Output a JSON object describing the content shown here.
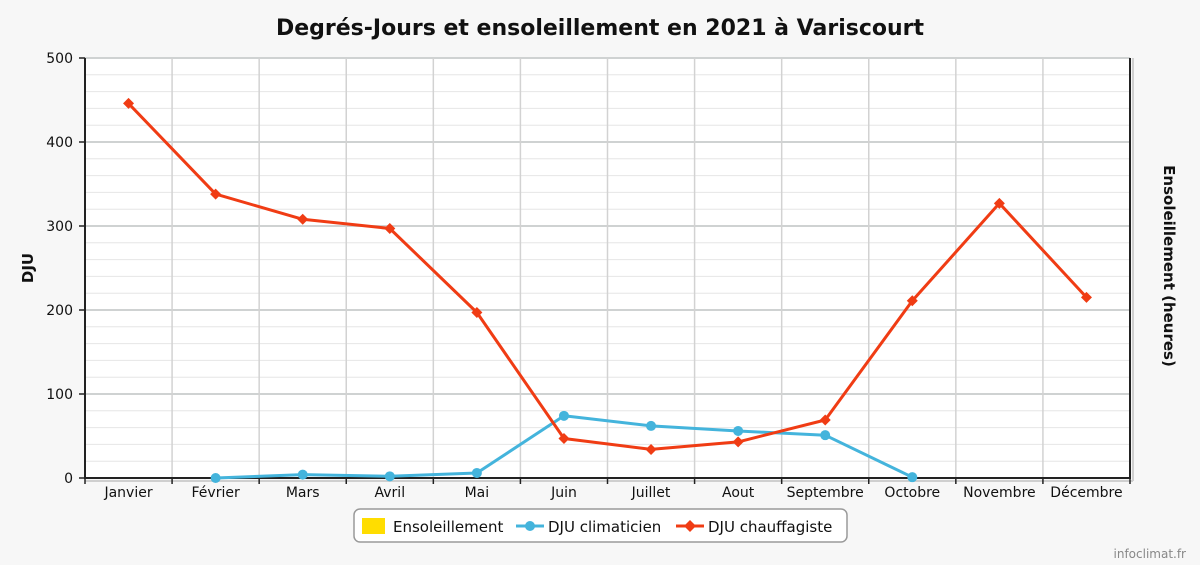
{
  "chart_data": {
    "type": "line",
    "title": "Degrés-Jours et ensoleillement en 2021 à Variscourt",
    "ylabel": "DJU",
    "y2label": "Ensoleillement (heures)",
    "ylim": [
      0,
      500
    ],
    "yticks": [
      0,
      100,
      200,
      300,
      400,
      500
    ],
    "categories": [
      "Janvier",
      "Février",
      "Mars",
      "Avril",
      "Mai",
      "Juin",
      "Juillet",
      "Aout",
      "Septembre",
      "Octobre",
      "Novembre",
      "Décembre"
    ],
    "grid": true,
    "legend_position": "bottom-center",
    "series": [
      {
        "name": "Ensoleillement",
        "kind": "bar",
        "color": "#ffdd00",
        "values": [
          null,
          null,
          null,
          null,
          null,
          null,
          null,
          null,
          null,
          null,
          null,
          null
        ]
      },
      {
        "name": "DJU climaticien",
        "kind": "line",
        "marker": "circle",
        "color": "#44b4dc",
        "values": [
          null,
          0,
          4,
          2,
          6,
          74,
          62,
          56,
          51,
          1,
          null,
          null
        ]
      },
      {
        "name": "DJU chauffagiste",
        "kind": "line",
        "marker": "diamond",
        "color": "#f03c14",
        "values": [
          446,
          338,
          308,
          297,
          197,
          47,
          34,
          43,
          69,
          211,
          327,
          215
        ]
      }
    ]
  },
  "credit": "infoclimat.fr"
}
